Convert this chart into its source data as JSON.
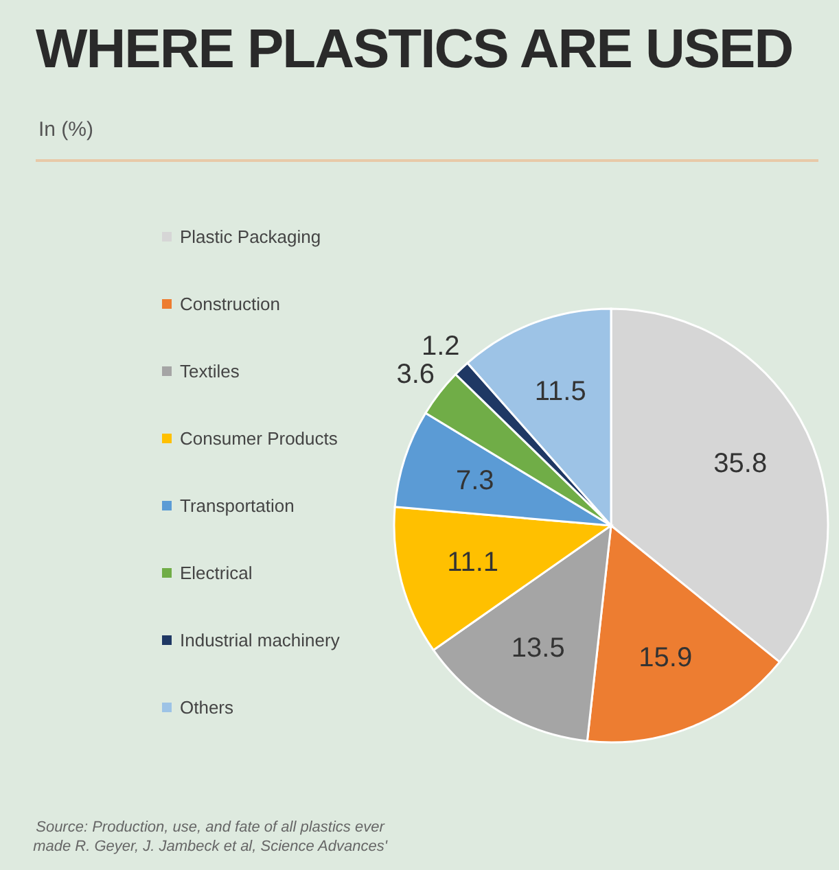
{
  "chart_data": {
    "type": "pie",
    "title": "WHERE PLASTICS ARE USED",
    "subtitle": "In (%)",
    "categories": [
      "Plastic Packaging",
      "Construction",
      "Textiles",
      "Consumer Products",
      "Transportation",
      "Electrical",
      "Industrial machinery",
      "Others"
    ],
    "values": [
      35.8,
      15.9,
      13.5,
      11.1,
      7.3,
      3.6,
      1.2,
      11.5
    ],
    "colors": [
      "#d6d6d6",
      "#ed7d31",
      "#a5a5a5",
      "#ffc000",
      "#5b9bd5",
      "#70ad47",
      "#1f3864",
      "#9dc3e6"
    ],
    "data_labels": true,
    "legend": "left",
    "annotations": [
      "Source: Production, use, and fate of all plastics ever made R. Geyer, J. Jambeck et al, Science Advances'"
    ]
  }
}
